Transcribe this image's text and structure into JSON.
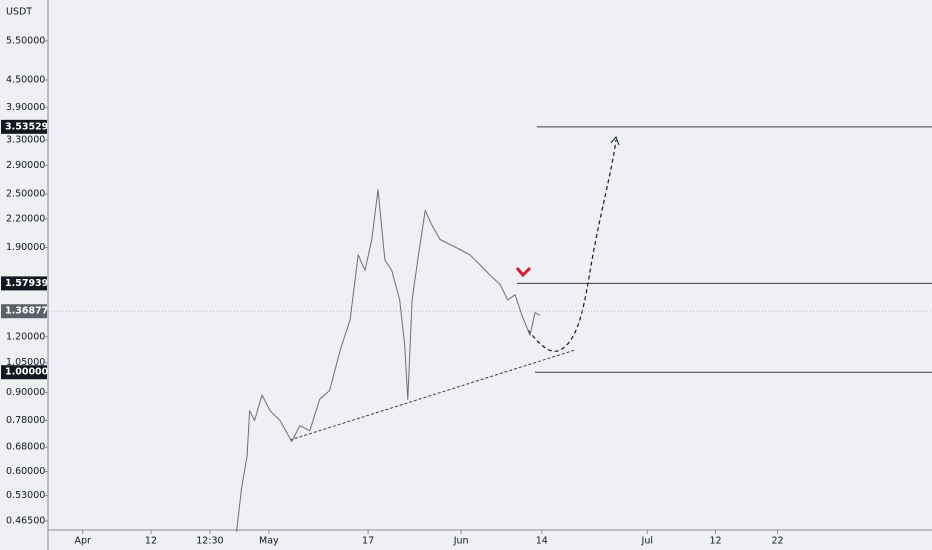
{
  "chart_data": {
    "type": "line",
    "currency": "USDT",
    "color": "#6b6e76",
    "log_scale": true,
    "x": [
      24.8,
      25.6,
      26.5,
      26.9,
      27.7,
      28.9,
      30.2,
      31.8,
      33.7,
      35.0,
      36.6,
      38.2,
      39.8,
      41.5,
      43.1,
      44.4,
      45.5,
      46.6,
      47.6,
      48.7,
      49.8,
      51.1,
      51.9,
      52.4,
      53.1,
      54.0,
      55.2,
      56.3,
      57.6,
      59.2,
      60.8,
      62.4,
      64.0,
      65.6,
      67.3,
      68.5,
      69.7,
      70.8,
      72.1,
      72.9,
      73.7
    ],
    "values": [
      0.44,
      0.55,
      0.65,
      0.82,
      0.78,
      0.89,
      0.82,
      0.78,
      0.7,
      0.76,
      0.74,
      0.87,
      0.91,
      1.12,
      1.31,
      1.83,
      1.69,
      1.98,
      2.56,
      1.78,
      1.69,
      1.45,
      1.15,
      0.87,
      1.45,
      1.78,
      2.3,
      2.13,
      1.98,
      1.93,
      1.88,
      1.83,
      1.74,
      1.65,
      1.57,
      1.45,
      1.49,
      1.34,
      1.21,
      1.36,
      1.34
    ],
    "xlim": [
      -5.6,
      136.9
    ],
    "ylim": [
      0.444,
      6.79
    ],
    "xticks": [
      {
        "value": 0,
        "label": "Apr"
      },
      {
        "value": 11,
        "label": "12"
      },
      {
        "value": 20.5,
        "label": "12:30"
      },
      {
        "value": 30,
        "label": "May"
      },
      {
        "value": 46,
        "label": "17"
      },
      {
        "value": 61,
        "label": "Jun"
      },
      {
        "value": 74,
        "label": "14"
      },
      {
        "value": 91,
        "label": "Jul"
      },
      {
        "value": 102,
        "label": "12"
      },
      {
        "value": 112,
        "label": "22"
      }
    ],
    "yticks": [
      {
        "value": 5.5,
        "label": "5.50000"
      },
      {
        "value": 4.5,
        "label": "4.50000"
      },
      {
        "value": 3.9,
        "label": "3.90000"
      },
      {
        "value": 3.3,
        "label": "3.30000"
      },
      {
        "value": 2.9,
        "label": "2.90000"
      },
      {
        "value": 2.5,
        "label": "2.50000"
      },
      {
        "value": 2.2,
        "label": "2.20000"
      },
      {
        "value": 1.9,
        "label": "1.90000"
      },
      {
        "value": 1.2,
        "label": "1.20000"
      },
      {
        "value": 1.05,
        "label": "1.05000"
      },
      {
        "value": 0.9,
        "label": "0.90000"
      },
      {
        "value": 0.78,
        "label": "0.78000"
      },
      {
        "value": 0.68,
        "label": "0.68000"
      },
      {
        "value": 0.6,
        "label": "0.60000"
      },
      {
        "value": 0.53,
        "label": "0.53000"
      },
      {
        "value": 0.465,
        "label": "0.46500"
      }
    ],
    "levels": [
      {
        "value": 3.53529,
        "label": "3.53529",
        "from": 73.2
      },
      {
        "value": 1.57939,
        "label": "1.57939",
        "from": 70.0
      },
      {
        "value": 1.0,
        "label": "1.00000",
        "from": 72.9
      }
    ],
    "last_price": {
      "value": 1.36877,
      "label": "1.36877"
    }
  }
}
